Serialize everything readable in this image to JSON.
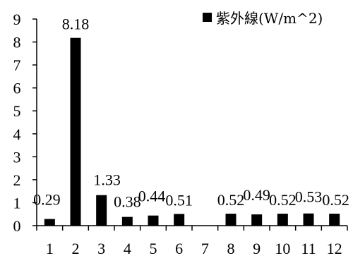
{
  "chart_data": {
    "type": "bar",
    "categories": [
      "1",
      "2",
      "3",
      "4",
      "5",
      "6",
      "7",
      "8",
      "9",
      "10",
      "11",
      "12"
    ],
    "series": [
      {
        "name": "紫外線(W/m^2)",
        "values": [
          0.29,
          8.18,
          1.33,
          0.38,
          0.44,
          0.51,
          null,
          0.52,
          0.49,
          0.52,
          0.53,
          0.52
        ],
        "labels": [
          "0.29",
          "8.18",
          "1.33",
          "0.38",
          "0.44",
          "0.51",
          "",
          "0.52",
          "0.49",
          "0.52",
          "0.53",
          "0.52"
        ],
        "color": "#000000"
      }
    ],
    "ylim": [
      0,
      9
    ],
    "yticks": [
      "0",
      "1",
      "2",
      "3",
      "4",
      "5",
      "6",
      "7",
      "8",
      "9"
    ],
    "grid": false,
    "legend_position": "top-right",
    "title": "",
    "xlabel": "",
    "ylabel": ""
  }
}
